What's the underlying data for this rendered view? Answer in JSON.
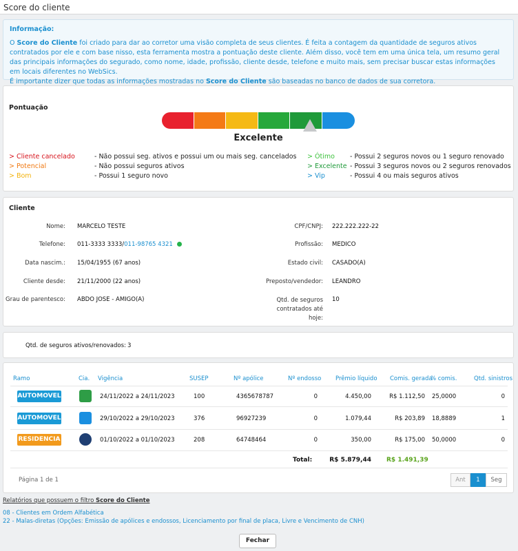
{
  "window": {
    "title": "Score do cliente"
  },
  "info": {
    "heading": "Informação:",
    "line1_a": "O ",
    "line1_b": "Score do Cliente",
    "line1_c": " foi criado para dar ao corretor uma visão completa de seus clientes. É feita a contagem da quantidade de seguros ativos contratados por ele e com base nisso, esta ferramenta mostra a pontuação deste cliente. Além disso, você tem em uma única tela, um resumo geral das principais informações do segurado, como nome, idade, profissão, cliente desde, telefone e muito mais, sem precisar buscar estas informações em locais diferentes no WebSics.",
    "line2_a": "É importante dizer que todas as informações mostradas no ",
    "line2_b": "Score do Cliente",
    "line2_c": " são baseadas no banco de dados de sua corretora."
  },
  "score": {
    "title": "Pontuação",
    "rating": "Excelente",
    "level": 5,
    "segment_colors": [
      "#e8212e",
      "#f47a16",
      "#f5b914",
      "#27a83b",
      "#1f9a3a",
      "#1a8fe0"
    ],
    "legend_left": [
      {
        "key": "> Cliente cancelado",
        "color": "#d6121b",
        "desc": "- Não possui seg. ativos e possui um ou mais seg. cancelados"
      },
      {
        "key": "> Potencial",
        "color": "#f07810",
        "desc": "- Não possui seguros ativos"
      },
      {
        "key": "> Bom",
        "color": "#f2b10a",
        "desc": "- Possui 1 seguro novo"
      }
    ],
    "legend_right": [
      {
        "key": "> Ótimo",
        "color": "#3cc13c",
        "desc": "- Possui 2 seguros novos ou 1 seguro renovado"
      },
      {
        "key": "> Excelente",
        "color": "#1f9a3a",
        "desc": "- Possui 3 seguros novos ou 2 seguros renovados"
      },
      {
        "key": "> Vip",
        "color": "#1a8fcf",
        "desc": "- Possui 4 ou mais seguros ativos"
      }
    ]
  },
  "cliente": {
    "title": "Cliente",
    "nome_label": "Nome:",
    "nome": "MARCELO TESTE",
    "telefone_label": "Telefone:",
    "telefone1": "011-3333 3333/",
    "telefone2": "011-98765 4321",
    "nasc_label": "Data nascim.:",
    "nasc": "15/04/1955 (67 anos)",
    "desde_label": "Cliente desde:",
    "desde": "21/11/2000 (22 anos)",
    "grau_label": "Grau de parentesco:",
    "grau": "ABDO JOSE - AMIGO(A)",
    "cpf_label": "CPF/CNPJ:",
    "cpf": "222.222.222-22",
    "prof_label": "Profissão:",
    "prof": "MEDICO",
    "civil_label": "Estado civil:",
    "civil": "CASADO(A)",
    "preposto_label": "Preposto/vendedor:",
    "preposto": "LEANDRO",
    "qtd_label_1": "Qtd. de seguros",
    "qtd_label_2": "contratados até",
    "qtd_label_3": "hoje:",
    "qtd": "10"
  },
  "ativos": {
    "label": "Qtd. de seguros ativos/renovados:",
    "value": "3"
  },
  "table": {
    "headers": [
      "Ramo",
      "Cia.",
      "Vigência",
      "SUSEP",
      "Nº apólice",
      "Nº endosso",
      "Prêmio líquido",
      "Comis. gerada",
      "% comis.",
      "Qtd. sinistros"
    ],
    "rows": [
      {
        "ramo": "AUTOMOVEL",
        "ramo_color": "#1a9ad6",
        "cia_icon": "insurer-green-icon",
        "cia_color": "#2e9d46",
        "vigencia": "24/11/2022 a 24/11/2023",
        "susep": "100",
        "apolice": "4365678787",
        "endosso": "0",
        "premio": "4.450,00",
        "comis": "R$ 1.112,50",
        "pct": "25,0000",
        "sinistros": "0"
      },
      {
        "ramo": "AUTOMOVEL",
        "ramo_color": "#1a9ad6",
        "cia_icon": "insurer-blue-icon",
        "cia_color": "#1a8fe0",
        "vigencia": "29/10/2022 a 29/10/2023",
        "susep": "376",
        "apolice": "96927239",
        "endosso": "0",
        "premio": "1.079,44",
        "comis": "R$ 203,89",
        "pct": "18,8889",
        "sinistros": "1"
      },
      {
        "ramo": "RESIDENCIA",
        "ramo_color": "#f29a1c",
        "cia_icon": "insurer-navy-icon",
        "cia_color": "#1f3f73",
        "vigencia": "01/10/2022 a 01/10/2023",
        "susep": "208",
        "apolice": "64748464",
        "endosso": "0",
        "premio": "350,00",
        "comis": "R$ 175,00",
        "pct": "50,0000",
        "sinistros": "0"
      }
    ],
    "total_label": "Total:",
    "total_premio": "R$ 5.879,44",
    "total_comis": "R$ 1.491,39",
    "pagina": "Página 1 de 1",
    "pager": {
      "prev": "Ant",
      "current": "1",
      "next": "Seg"
    }
  },
  "relatorios": {
    "title_a": "Relatórios que possuem o filtro ",
    "title_b": "Score do Cliente",
    "items": [
      "08 - Clientes em Ordem Alfabética",
      "22 - Malas-diretas (Opções: Emissão de apólices e endossos, Licenciamento por final de placa, Livre e Vencimento de CNH)"
    ]
  },
  "fechar": "Fechar"
}
